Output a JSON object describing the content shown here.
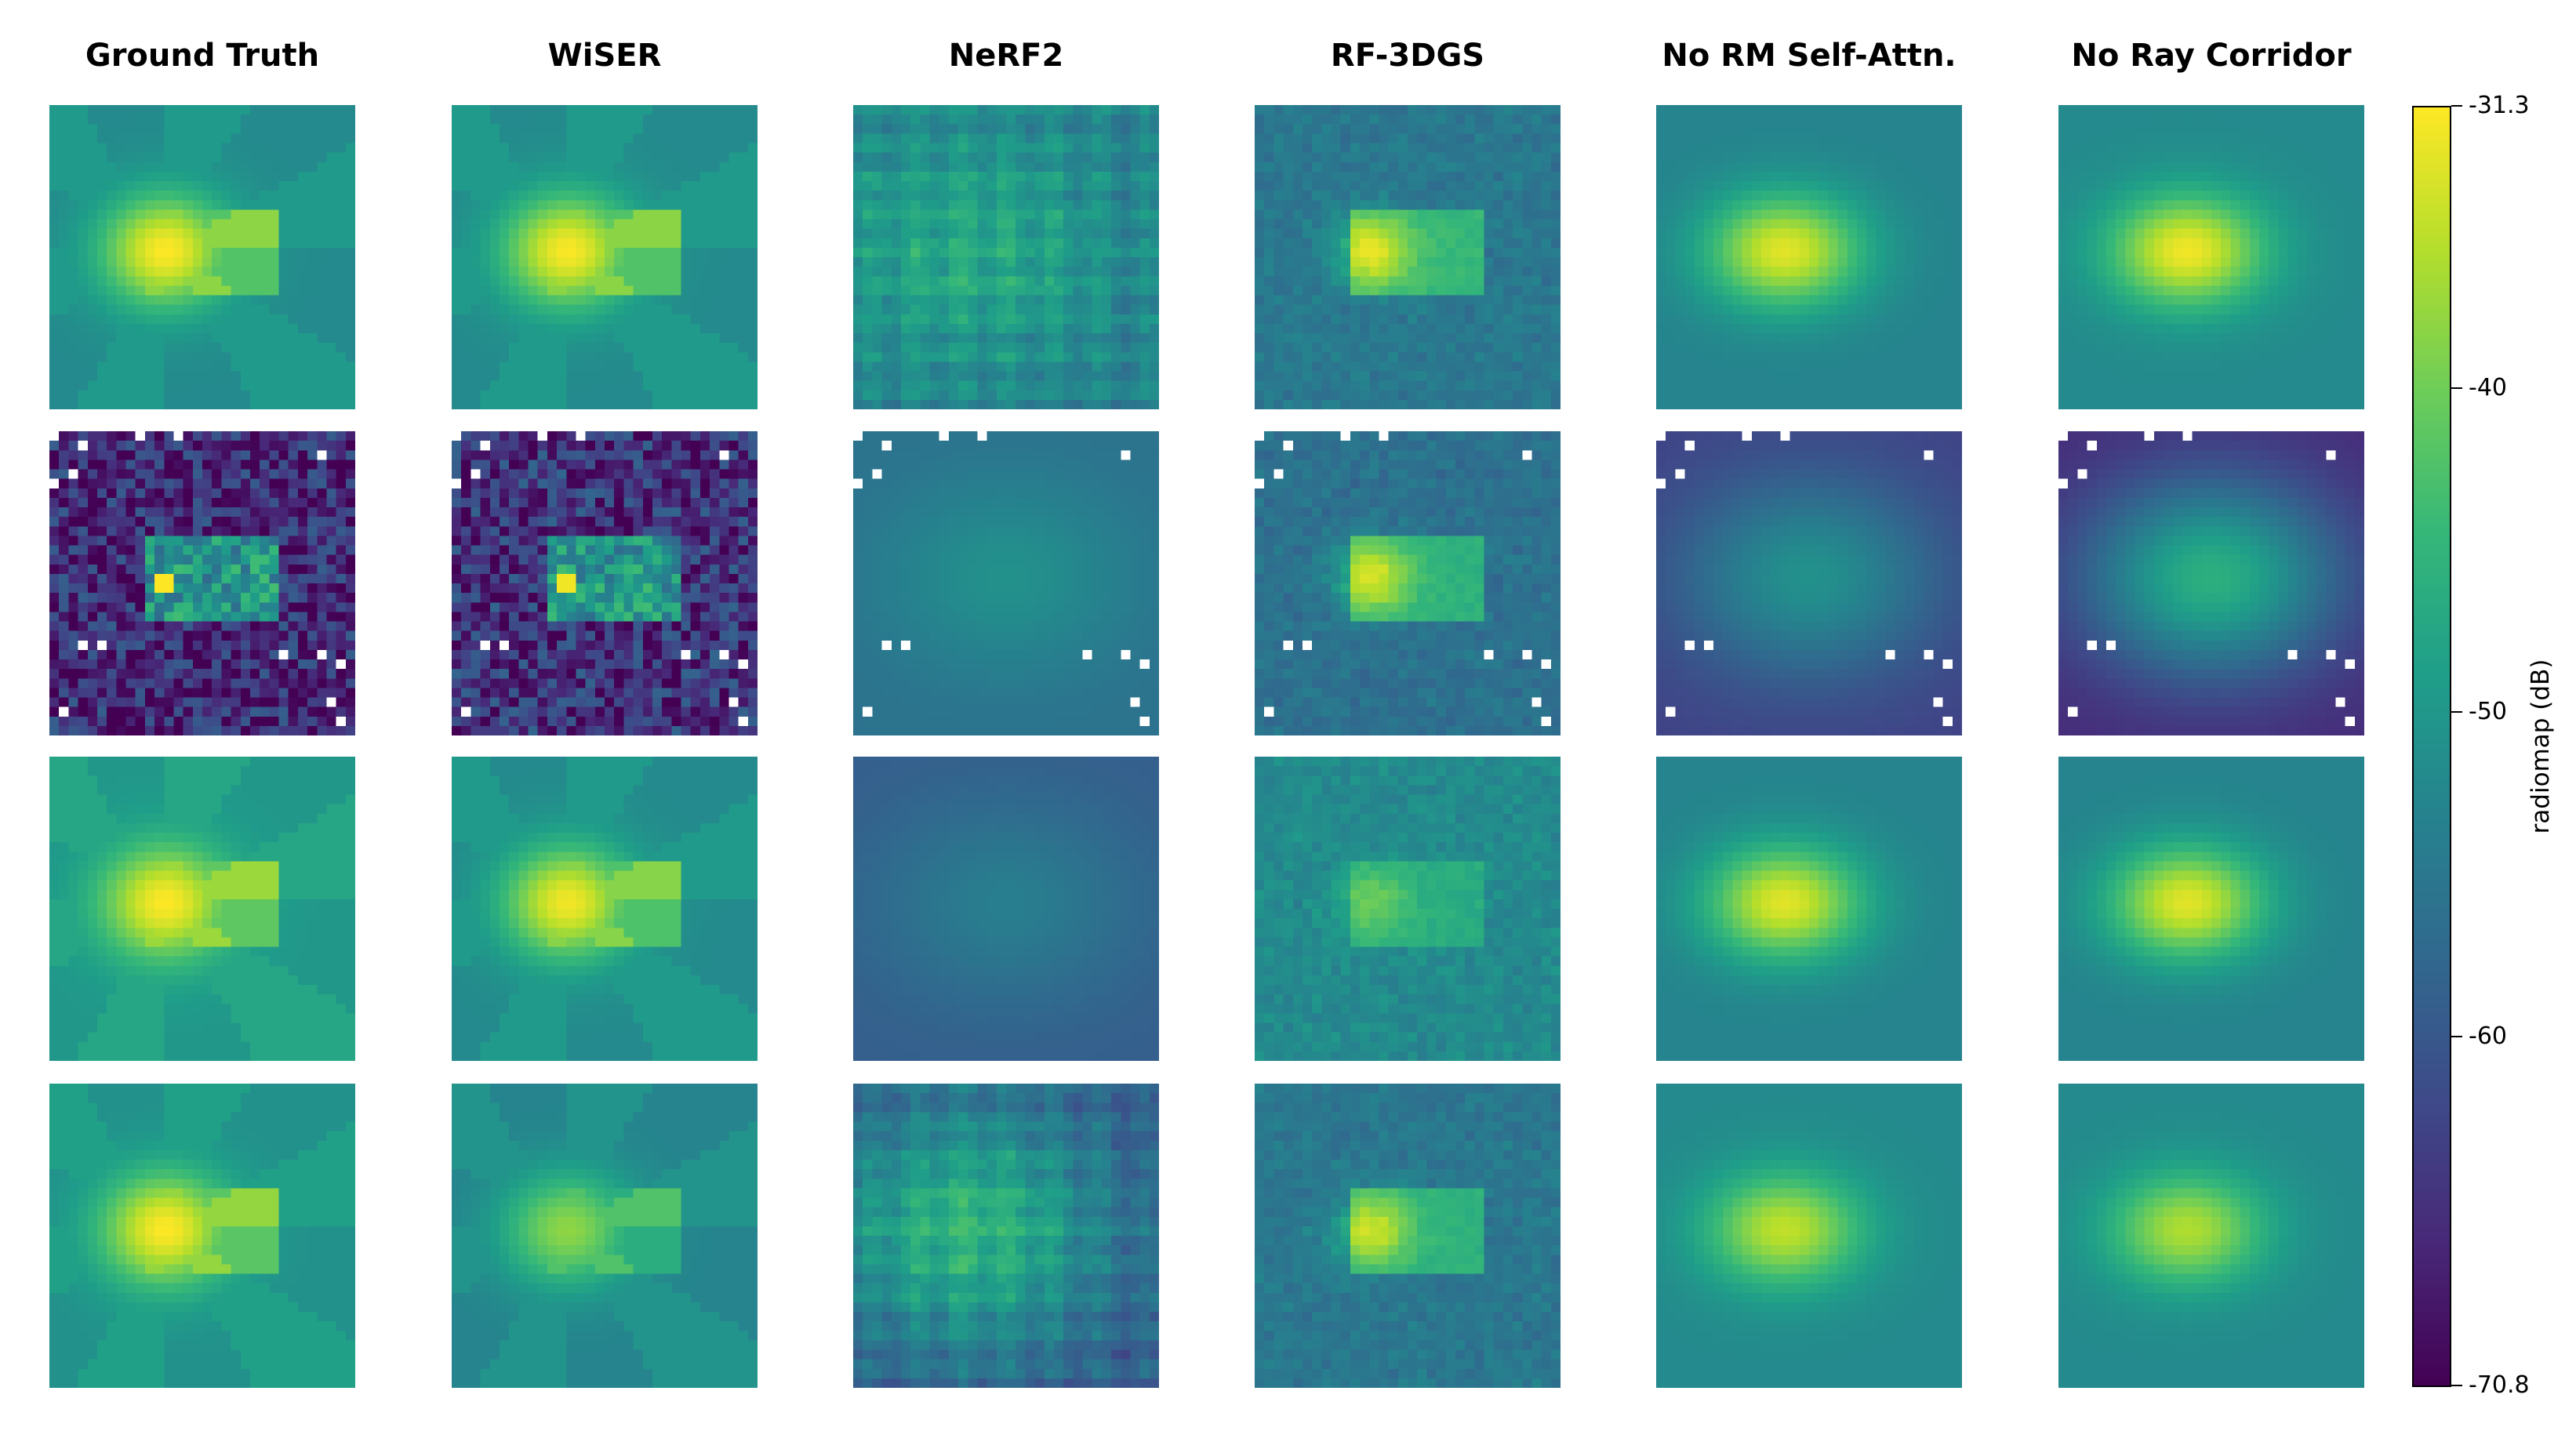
{
  "chart_data": {
    "type": "heatmap",
    "columns": [
      "Ground Truth",
      "WiSER",
      "NeRF2",
      "RF-3DGS",
      "No RM Self-Attn.",
      "No Ray Corridor"
    ],
    "rows": 4,
    "grid_resolution": [
      32,
      32
    ],
    "colormap": "viridis",
    "colorbar": {
      "label": "radiomap (dB)",
      "min": -70.8,
      "max": -31.3,
      "ticks": [
        "-31.3",
        "-40",
        "-50",
        "-60",
        "-70.8"
      ],
      "tick_values": [
        -31.3,
        -40,
        -50,
        -60,
        -70.8
      ]
    },
    "missing_value_color": "#ffffff",
    "panels": [
      [
        {
          "peak_dB": -31.3,
          "background_dB": -52,
          "style": "blocky-room"
        },
        {
          "peak_dB": -31.5,
          "background_dB": -52,
          "style": "blocky-room"
        },
        {
          "peak_dB": -47,
          "background_dB": -54,
          "style": "grid-artifacts"
        },
        {
          "peak_dB": -32,
          "background_dB": -55,
          "style": "gaussian-room"
        },
        {
          "peak_dB": -33,
          "background_dB": -53,
          "style": "smooth-blob"
        },
        {
          "peak_dB": -32,
          "background_dB": -52,
          "style": "smooth-blob"
        }
      ],
      [
        {
          "peak_dB": -31.3,
          "background_dB": -66,
          "style": "noisy-room"
        },
        {
          "peak_dB": -32,
          "background_dB": -65,
          "style": "noisy-room"
        },
        {
          "peak_dB": -51,
          "background_dB": -56,
          "style": "smooth-dim"
        },
        {
          "peak_dB": -33,
          "background_dB": -56,
          "style": "gaussian-room"
        },
        {
          "peak_dB": -51,
          "background_dB": -63,
          "style": "smooth-dim"
        },
        {
          "peak_dB": -46,
          "background_dB": -66,
          "style": "smooth-dim"
        }
      ],
      [
        {
          "peak_dB": -31.3,
          "background_dB": -50,
          "style": "blocky-room"
        },
        {
          "peak_dB": -32,
          "background_dB": -52,
          "style": "blocky-room"
        },
        {
          "peak_dB": -54,
          "background_dB": -59,
          "style": "smooth-dim"
        },
        {
          "peak_dB": -40,
          "background_dB": -52,
          "style": "gaussian-room"
        },
        {
          "peak_dB": -33,
          "background_dB": -53,
          "style": "smooth-blob"
        },
        {
          "peak_dB": -33,
          "background_dB": -53,
          "style": "smooth-blob"
        }
      ],
      [
        {
          "peak_dB": -31.3,
          "background_dB": -51,
          "style": "blocky-room"
        },
        {
          "peak_dB": -38,
          "background_dB": -53,
          "style": "blocky-room"
        },
        {
          "peak_dB": -45,
          "background_dB": -60,
          "style": "grid-artifacts"
        },
        {
          "peak_dB": -34,
          "background_dB": -55,
          "style": "gaussian-room"
        },
        {
          "peak_dB": -35,
          "background_dB": -52,
          "style": "smooth-blob"
        },
        {
          "peak_dB": -36,
          "background_dB": -52,
          "style": "smooth-blob"
        }
      ]
    ]
  }
}
